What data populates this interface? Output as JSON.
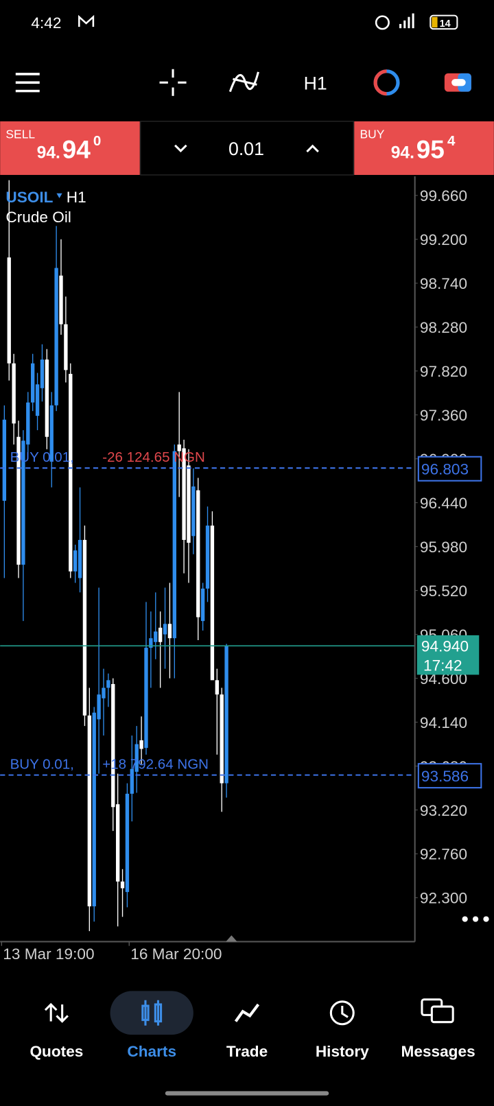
{
  "status_bar": {
    "time": "4:42",
    "battery": "14"
  },
  "toolbar": {
    "timeframe": "H1"
  },
  "trade_panel": {
    "sell": {
      "label": "SELL",
      "price_main": "94.",
      "price_big": "94",
      "price_sup": "0"
    },
    "lot": "0.01",
    "buy": {
      "label": "BUY",
      "price_main": "94.",
      "price_big": "95",
      "price_sup": "4"
    }
  },
  "chart_data": {
    "type": "candlestick",
    "symbol": "USOIL",
    "timeframe": "H1",
    "description": "Crude Oil",
    "categories": [
      "13 Mar 19:00",
      null,
      null,
      null,
      null,
      null,
      null,
      null,
      null,
      null,
      null,
      null,
      null,
      null,
      null,
      null,
      null,
      null,
      null,
      null,
      null,
      null,
      null,
      null,
      null,
      null,
      null,
      "16 Mar 20:00",
      null,
      null,
      null,
      null,
      null,
      null,
      null,
      null,
      null,
      null,
      null,
      null,
      null,
      null,
      null,
      null,
      null,
      null,
      null,
      null
    ],
    "open": [
      96.46,
      99.01,
      97.9,
      97.13,
      95.79,
      97.05,
      97.49,
      97.35,
      97.64,
      97.94,
      96.87,
      97.46,
      98.82,
      98.31,
      97.79,
      95.72,
      95.65,
      96.05,
      94.21,
      92.21,
      94.17,
      94.39,
      94.5,
      94.54,
      93.28,
      92.47,
      92.36,
      93.39,
      93.62,
      93.95,
      93.87,
      94.92,
      94.98,
      95.13,
      95.06,
      95.17,
      95.02,
      97.05,
      97.01,
      96.83,
      96.09,
      96.57,
      95.2,
      95.54,
      96.2,
      94.58,
      94.43,
      93.5
    ],
    "high": [
      97.46,
      99.82,
      98.0,
      97.3,
      97.2,
      97.6,
      98.0,
      97.8,
      98.1,
      98.05,
      97.6,
      99.34,
      99.2,
      98.6,
      97.9,
      96.0,
      96.6,
      96.2,
      94.5,
      94.3,
      95.55,
      94.7,
      94.65,
      94.6,
      93.6,
      92.6,
      93.5,
      94.0,
      94.1,
      94.2,
      95.4,
      95.3,
      95.5,
      95.3,
      95.55,
      95.6,
      97.05,
      97.6,
      97.1,
      97.0,
      96.8,
      96.7,
      95.6,
      96.4,
      96.35,
      94.7,
      94.5,
      94.96
    ],
    "low": [
      95.65,
      97.72,
      97.05,
      95.65,
      95.2,
      96.9,
      97.4,
      97.2,
      97.5,
      97.0,
      96.6,
      97.4,
      98.2,
      97.7,
      95.65,
      95.6,
      95.5,
      94.1,
      91.95,
      92.05,
      93.6,
      94.0,
      94.3,
      93.0,
      92.0,
      92.1,
      92.2,
      93.1,
      93.4,
      93.7,
      93.8,
      94.5,
      94.8,
      94.5,
      94.7,
      94.6,
      94.6,
      96.5,
      95.7,
      95.6,
      95.9,
      95.0,
      95.1,
      95.4,
      94.6,
      93.8,
      93.2,
      93.35
    ],
    "close": [
      97.31,
      97.9,
      97.27,
      95.79,
      97.09,
      97.49,
      97.9,
      97.68,
      97.94,
      97.13,
      97.46,
      98.9,
      98.31,
      97.83,
      95.72,
      95.94,
      96.05,
      94.21,
      92.21,
      94.24,
      94.43,
      94.5,
      94.58,
      93.25,
      92.47,
      92.4,
      93.39,
      93.65,
      93.91,
      93.86,
      94.92,
      95.02,
      95.09,
      94.98,
      95.17,
      95.02,
      96.98,
      96.98,
      96.05,
      96.02,
      96.61,
      95.24,
      95.54,
      96.2,
      94.58,
      94.43,
      93.5,
      94.94
    ],
    "up_color": "#2f8ded",
    "down_color": "#ffffff",
    "ylim": [
      91.84,
      99.86
    ],
    "yticks": [
      {
        "value": 99.66,
        "label": "99.660"
      },
      {
        "value": 99.2,
        "label": "99.200"
      },
      {
        "value": 98.74,
        "label": "98.740"
      },
      {
        "value": 98.28,
        "label": "98.280"
      },
      {
        "value": 97.82,
        "label": "97.820"
      },
      {
        "value": 97.36,
        "label": "97.360"
      },
      {
        "value": 96.9,
        "label": "96.900"
      },
      {
        "value": 96.44,
        "label": "96.440"
      },
      {
        "value": 95.98,
        "label": "95.980"
      },
      {
        "value": 95.52,
        "label": "95.520"
      },
      {
        "value": 95.06,
        "label": "95.060"
      },
      {
        "value": 94.6,
        "label": "94.600"
      },
      {
        "value": 94.14,
        "label": "94.140"
      },
      {
        "value": 93.68,
        "label": "93.680"
      },
      {
        "value": 93.22,
        "label": "93.220"
      },
      {
        "value": 92.76,
        "label": "92.760"
      },
      {
        "value": 92.3,
        "label": "92.300"
      }
    ],
    "bid": {
      "price": {
        "value": 94.94,
        "label": "94.940"
      },
      "timer": "17:42",
      "color": "#22a08f"
    },
    "line_color": "#3d73e8",
    "positions": [
      {
        "label": "BUY 0.01,",
        "profit": "-26 124.65 NGN",
        "profit_color": "#e0474c",
        "price": {
          "value": 96.803,
          "label": "96.803"
        }
      },
      {
        "label": "BUY 0.01,",
        "profit": "+18 792.64 NGN",
        "profit_color": "#3d73e8",
        "price": {
          "value": 93.586,
          "label": "93.586"
        }
      }
    ]
  },
  "nav": {
    "items": [
      "Quotes",
      "Charts",
      "Trade",
      "History",
      "Messages"
    ],
    "active": "Charts"
  }
}
